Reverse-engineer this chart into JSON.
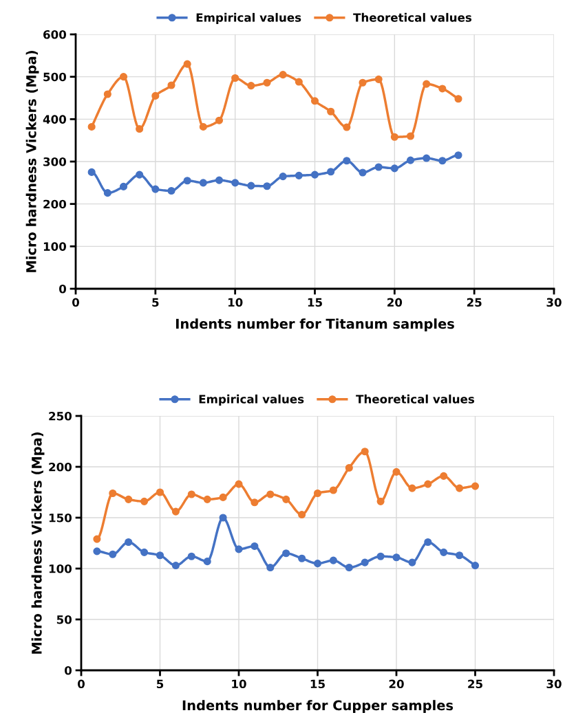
{
  "chart_data": [
    {
      "type": "line",
      "xlabel": "Indents number for Titanum samples",
      "ylabel": "Micro hardness Vickers (Mpa)",
      "x": [
        1,
        2,
        3,
        4,
        5,
        6,
        7,
        8,
        9,
        10,
        11,
        12,
        13,
        14,
        15,
        16,
        17,
        18,
        19,
        20,
        21,
        22,
        23,
        24
      ],
      "series": [
        {
          "name": "Empirical values",
          "color": "#4472c4",
          "values": [
            275,
            226,
            241,
            269,
            235,
            231,
            255,
            250,
            256,
            250,
            243,
            242,
            265,
            267,
            269,
            276,
            302,
            274,
            287,
            284,
            303,
            308,
            302,
            315
          ]
        },
        {
          "name": "Theoretical values",
          "color": "#ed7d31",
          "values": [
            382,
            459,
            500,
            377,
            455,
            480,
            530,
            382,
            397,
            497,
            479,
            486,
            505,
            488,
            443,
            418,
            381,
            486,
            494,
            358,
            360,
            483,
            472,
            448
          ]
        }
      ],
      "xlim": [
        0,
        30
      ],
      "xticks": [
        0,
        5,
        10,
        15,
        20,
        25,
        30
      ],
      "ylim": [
        0,
        600
      ],
      "yticks": [
        0,
        100,
        200,
        300,
        400,
        500,
        600
      ],
      "grid": true,
      "legend": "top",
      "marker": "circle",
      "line_style": "solid"
    },
    {
      "type": "line",
      "xlabel": "Indents number for Cupper samples",
      "ylabel": "Micro hardness Vickers (Mpa)",
      "x": [
        1,
        2,
        3,
        4,
        5,
        6,
        7,
        8,
        9,
        10,
        11,
        12,
        13,
        14,
        15,
        16,
        17,
        18,
        19,
        20,
        21,
        22,
        23,
        24,
        25
      ],
      "series": [
        {
          "name": "Empirical values",
          "color": "#4472c4",
          "values": [
            117,
            114,
            126,
            116,
            113,
            103,
            112,
            107,
            150,
            119,
            122,
            101,
            115,
            110,
            105,
            108,
            101,
            106,
            112,
            111,
            106,
            126,
            116,
            113,
            103
          ]
        },
        {
          "name": "Theoretical values",
          "color": "#ed7d31",
          "values": [
            129,
            174,
            168,
            166,
            175,
            156,
            173,
            168,
            170,
            183,
            165,
            173,
            168,
            153,
            174,
            177,
            199,
            215,
            166,
            195,
            179,
            183,
            191,
            179,
            181
          ]
        }
      ],
      "xlim": [
        0,
        30
      ],
      "xticks": [
        0,
        5,
        10,
        15,
        20,
        25,
        30
      ],
      "ylim": [
        0,
        250
      ],
      "yticks": [
        0,
        50,
        100,
        150,
        200,
        250
      ],
      "grid": true,
      "legend": "top",
      "marker": "circle",
      "line_style": "solid"
    }
  ]
}
